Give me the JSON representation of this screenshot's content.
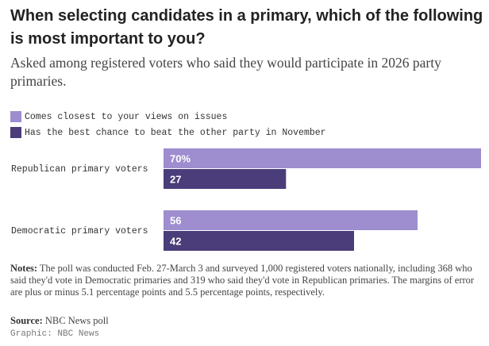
{
  "chart_data": {
    "type": "bar",
    "orientation": "horizontal",
    "title": "When selecting candidates in a primary, which of the following is most important to you?",
    "subtitle": "Asked among registered voters who said they would participate in 2026 party primaries.",
    "categories": [
      "Republican primary voters",
      "Democratic primary voters"
    ],
    "series": [
      {
        "name": "Comes closest to your views on issues",
        "color": "#9e8dcf",
        "values": [
          70,
          56
        ],
        "labels": [
          "70%",
          "56"
        ]
      },
      {
        "name": "Has the best chance to beat the other party in November",
        "color": "#4a3d7a",
        "values": [
          27,
          42
        ],
        "labels": [
          "27",
          "42"
        ]
      }
    ],
    "xlim": [
      0,
      70
    ],
    "unit": "%",
    "legend_position": "top-left",
    "xlabel": "",
    "ylabel": "",
    "grid": false
  },
  "notes": {
    "label": "Notes:",
    "text": " The poll was conducted Feb. 27-March 3 and surveyed 1,000 registered voters nationally, including 368 who said they'd vote in Democratic primaries and 319 who said they'd vote in Republican primaries. The margins of error are plus or minus 5.1 percentage points and 5.5 percentage points, respectively."
  },
  "source": {
    "label": "Source:",
    "text": " NBC News poll"
  },
  "credit": "Graphic: NBC News"
}
